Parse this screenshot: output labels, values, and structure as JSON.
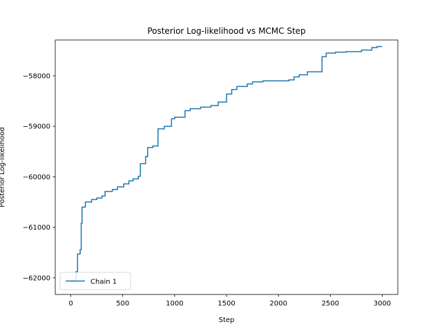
{
  "chart_data": {
    "type": "line",
    "title": "Posterior Log-likelihood vs MCMC Step",
    "xlabel": "Step",
    "ylabel": "Posterior Log-likelihood",
    "xlim": [
      -150,
      3150
    ],
    "ylim": [
      -62330,
      -57290
    ],
    "xticks": [
      0,
      500,
      1000,
      1500,
      2000,
      2500,
      3000
    ],
    "yticks": [
      -62000,
      -61000,
      -60000,
      -59000,
      -58000
    ],
    "grid": false,
    "legend_position": "lower-left",
    "series": [
      {
        "name": "Chain 1",
        "color": "#1f77b4",
        "points": [
          [
            0,
            -62080
          ],
          [
            25,
            -62080
          ],
          [
            25,
            -62060
          ],
          [
            50,
            -62060
          ],
          [
            50,
            -61880
          ],
          [
            65,
            -61880
          ],
          [
            65,
            -61530
          ],
          [
            90,
            -61530
          ],
          [
            90,
            -61440
          ],
          [
            100,
            -61440
          ],
          [
            100,
            -60920
          ],
          [
            108,
            -60920
          ],
          [
            108,
            -60600
          ],
          [
            140,
            -60600
          ],
          [
            140,
            -60500
          ],
          [
            200,
            -60500
          ],
          [
            200,
            -60450
          ],
          [
            250,
            -60450
          ],
          [
            250,
            -60420
          ],
          [
            300,
            -60420
          ],
          [
            300,
            -60380
          ],
          [
            330,
            -60380
          ],
          [
            330,
            -60290
          ],
          [
            400,
            -60290
          ],
          [
            400,
            -60250
          ],
          [
            450,
            -60250
          ],
          [
            450,
            -60200
          ],
          [
            510,
            -60200
          ],
          [
            510,
            -60140
          ],
          [
            560,
            -60140
          ],
          [
            560,
            -60080
          ],
          [
            600,
            -60080
          ],
          [
            600,
            -60040
          ],
          [
            650,
            -60040
          ],
          [
            650,
            -59990
          ],
          [
            670,
            -59990
          ],
          [
            670,
            -59740
          ],
          [
            720,
            -59740
          ],
          [
            720,
            -59600
          ],
          [
            740,
            -59600
          ],
          [
            740,
            -59420
          ],
          [
            790,
            -59420
          ],
          [
            790,
            -59390
          ],
          [
            840,
            -59390
          ],
          [
            840,
            -59050
          ],
          [
            900,
            -59050
          ],
          [
            900,
            -59000
          ],
          [
            970,
            -59000
          ],
          [
            970,
            -58850
          ],
          [
            1000,
            -58850
          ],
          [
            1000,
            -58820
          ],
          [
            1100,
            -58820
          ],
          [
            1100,
            -58690
          ],
          [
            1150,
            -58690
          ],
          [
            1150,
            -58650
          ],
          [
            1250,
            -58650
          ],
          [
            1250,
            -58620
          ],
          [
            1350,
            -58620
          ],
          [
            1350,
            -58590
          ],
          [
            1420,
            -58590
          ],
          [
            1420,
            -58520
          ],
          [
            1500,
            -58520
          ],
          [
            1500,
            -58360
          ],
          [
            1550,
            -58360
          ],
          [
            1550,
            -58270
          ],
          [
            1600,
            -58270
          ],
          [
            1600,
            -58210
          ],
          [
            1700,
            -58210
          ],
          [
            1700,
            -58160
          ],
          [
            1750,
            -58160
          ],
          [
            1750,
            -58120
          ],
          [
            1850,
            -58120
          ],
          [
            1850,
            -58100
          ],
          [
            2100,
            -58100
          ],
          [
            2100,
            -58080
          ],
          [
            2150,
            -58080
          ],
          [
            2150,
            -58020
          ],
          [
            2200,
            -58020
          ],
          [
            2200,
            -57980
          ],
          [
            2280,
            -57980
          ],
          [
            2280,
            -57920
          ],
          [
            2420,
            -57920
          ],
          [
            2420,
            -57620
          ],
          [
            2460,
            -57620
          ],
          [
            2460,
            -57550
          ],
          [
            2550,
            -57550
          ],
          [
            2550,
            -57530
          ],
          [
            2650,
            -57530
          ],
          [
            2650,
            -57520
          ],
          [
            2800,
            -57520
          ],
          [
            2800,
            -57490
          ],
          [
            2900,
            -57490
          ],
          [
            2900,
            -57440
          ],
          [
            2950,
            -57440
          ],
          [
            2950,
            -57420
          ],
          [
            3000,
            -57420
          ]
        ]
      }
    ]
  }
}
